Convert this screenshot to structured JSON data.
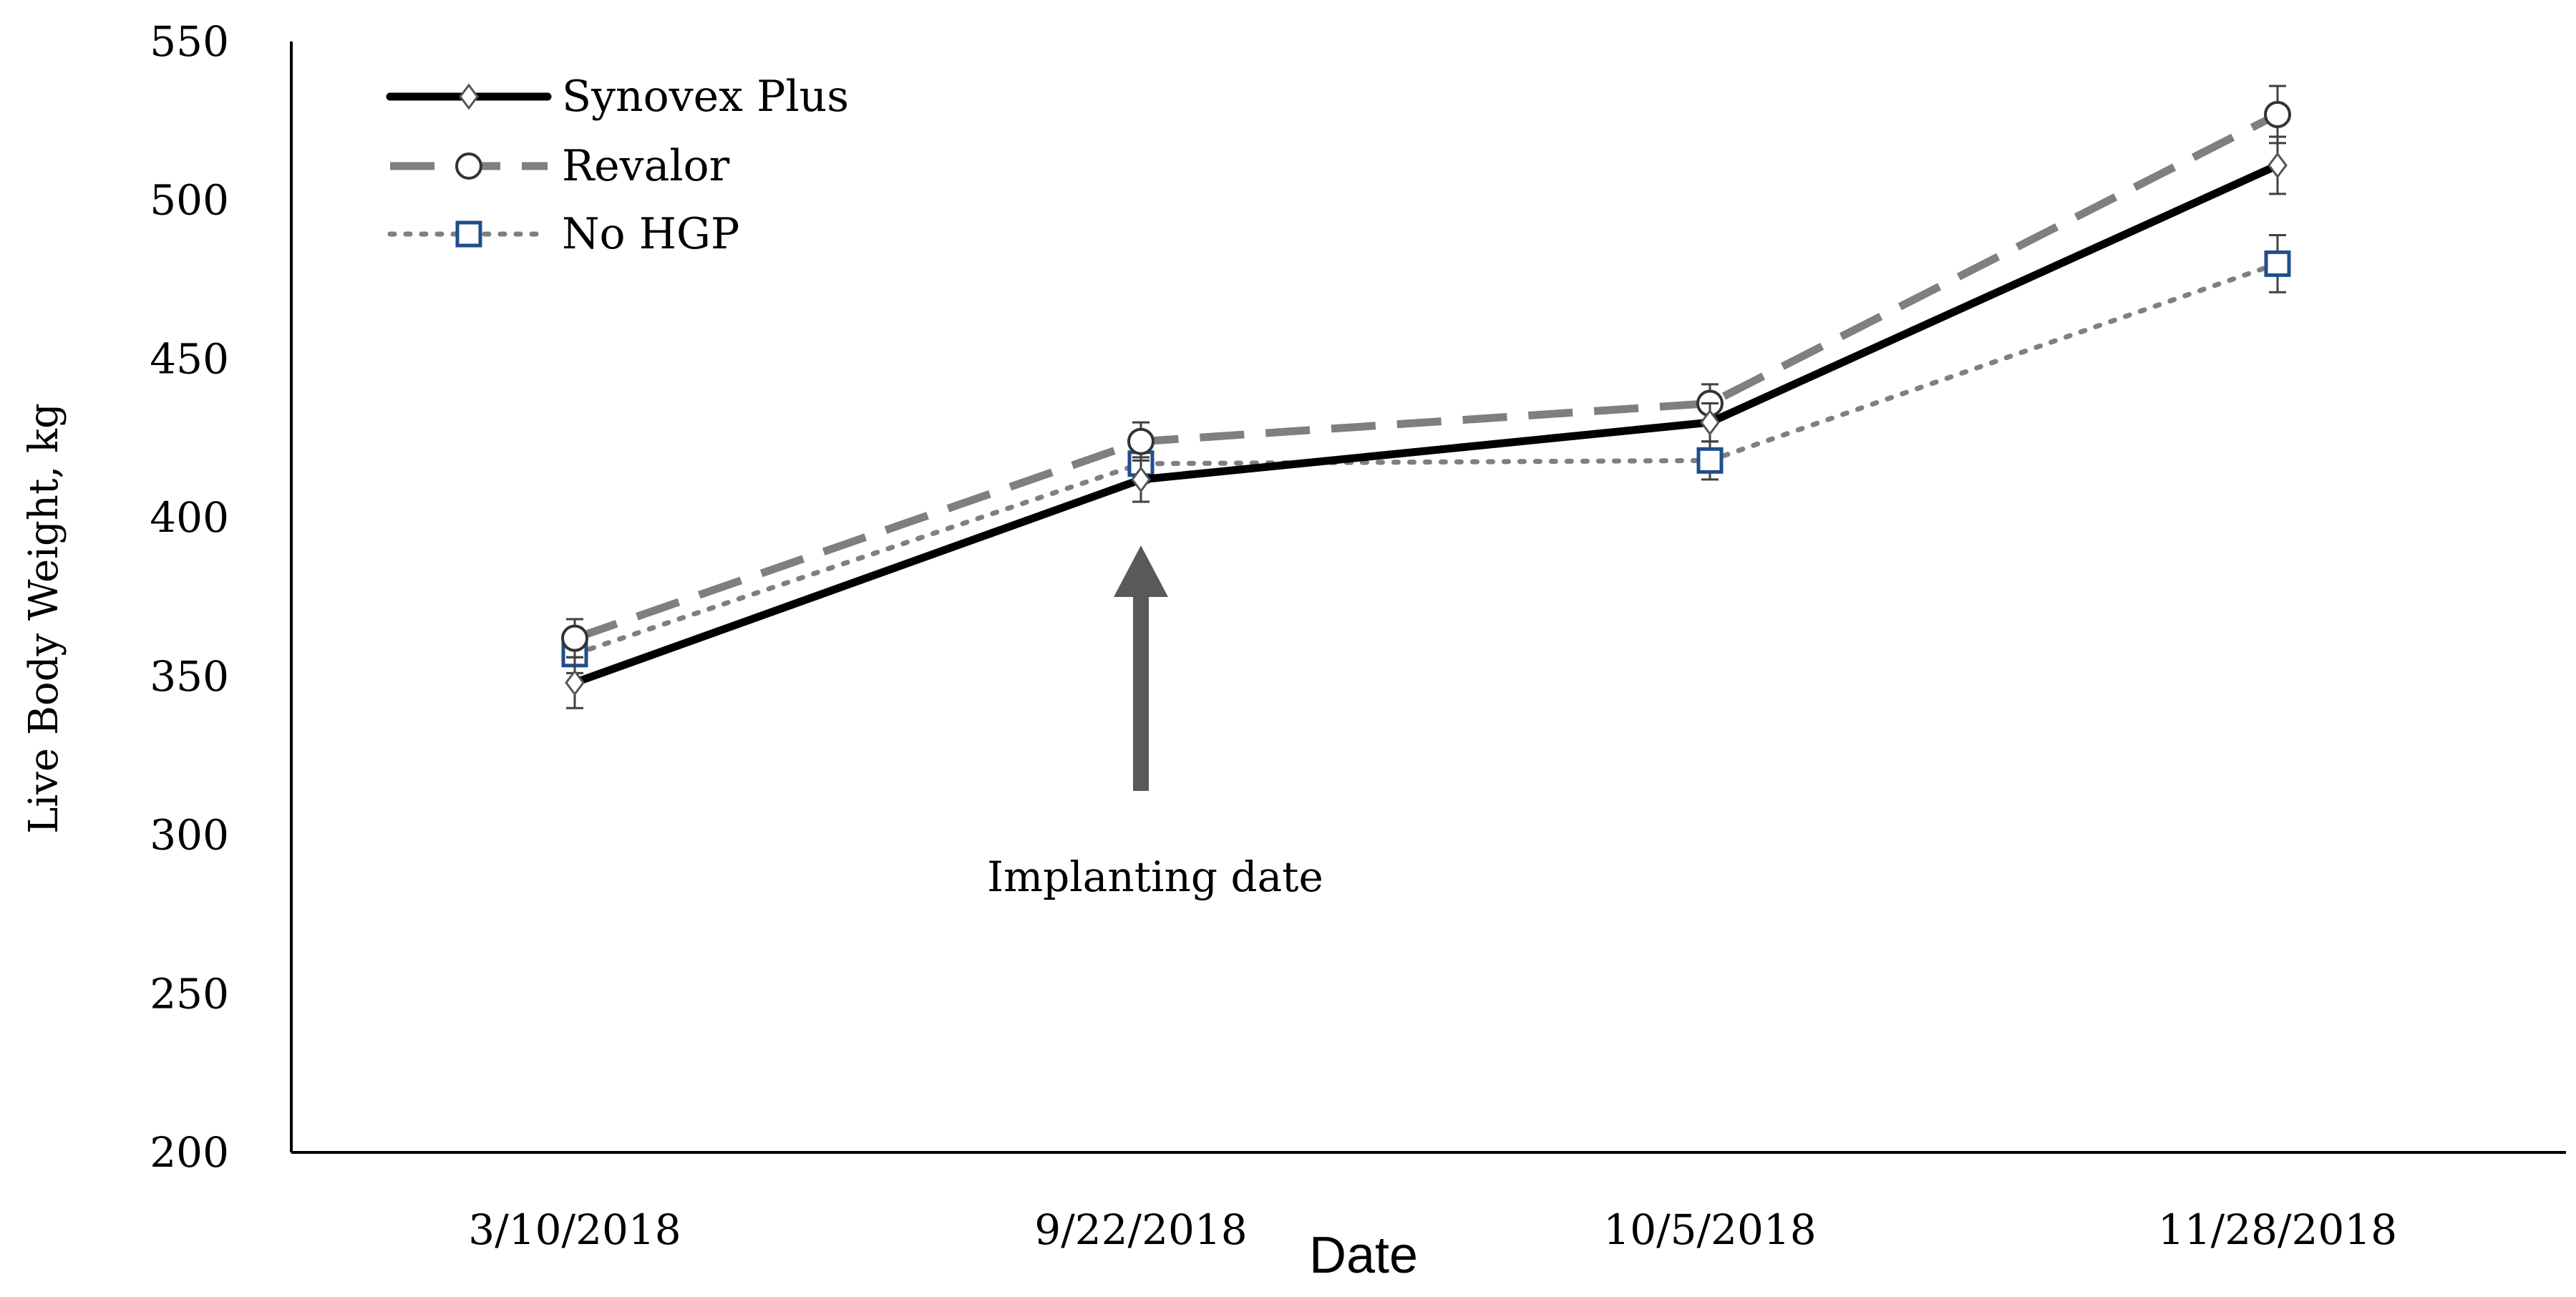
{
  "chart_data": {
    "type": "line",
    "xlabel": "Date",
    "ylabel": "Live Body Weight, kg",
    "categories": [
      "3/10/2018",
      "9/22/2018",
      "10/5/2018",
      "11/28/2018"
    ],
    "ylim": [
      200,
      550
    ],
    "yticks": [
      200,
      250,
      300,
      350,
      400,
      450,
      500,
      550
    ],
    "grid": false,
    "legend_position": "top-left",
    "series": [
      {
        "name": "Synovex Plus",
        "values": [
          348,
          412,
          430,
          511
        ],
        "errors": [
          8,
          7,
          6,
          9
        ],
        "line_style": "solid",
        "marker": "diamond",
        "color": "#000000"
      },
      {
        "name": "Revalor",
        "values": [
          362,
          424,
          436,
          527
        ],
        "errors": [
          6,
          6,
          6,
          9
        ],
        "line_style": "dashed",
        "marker": "circle",
        "color": "#7f7f7f"
      },
      {
        "name": "No HGP",
        "values": [
          357,
          417,
          418,
          480
        ],
        "errors": [
          6,
          6,
          6,
          9
        ],
        "line_style": "dotted",
        "marker": "square",
        "color": "#7f7f7f",
        "marker_color": "#1f4e8c"
      }
    ],
    "annotations": [
      {
        "text": "Implanting date",
        "category": "9/22/2018",
        "arrow_color": "#595959"
      }
    ]
  }
}
